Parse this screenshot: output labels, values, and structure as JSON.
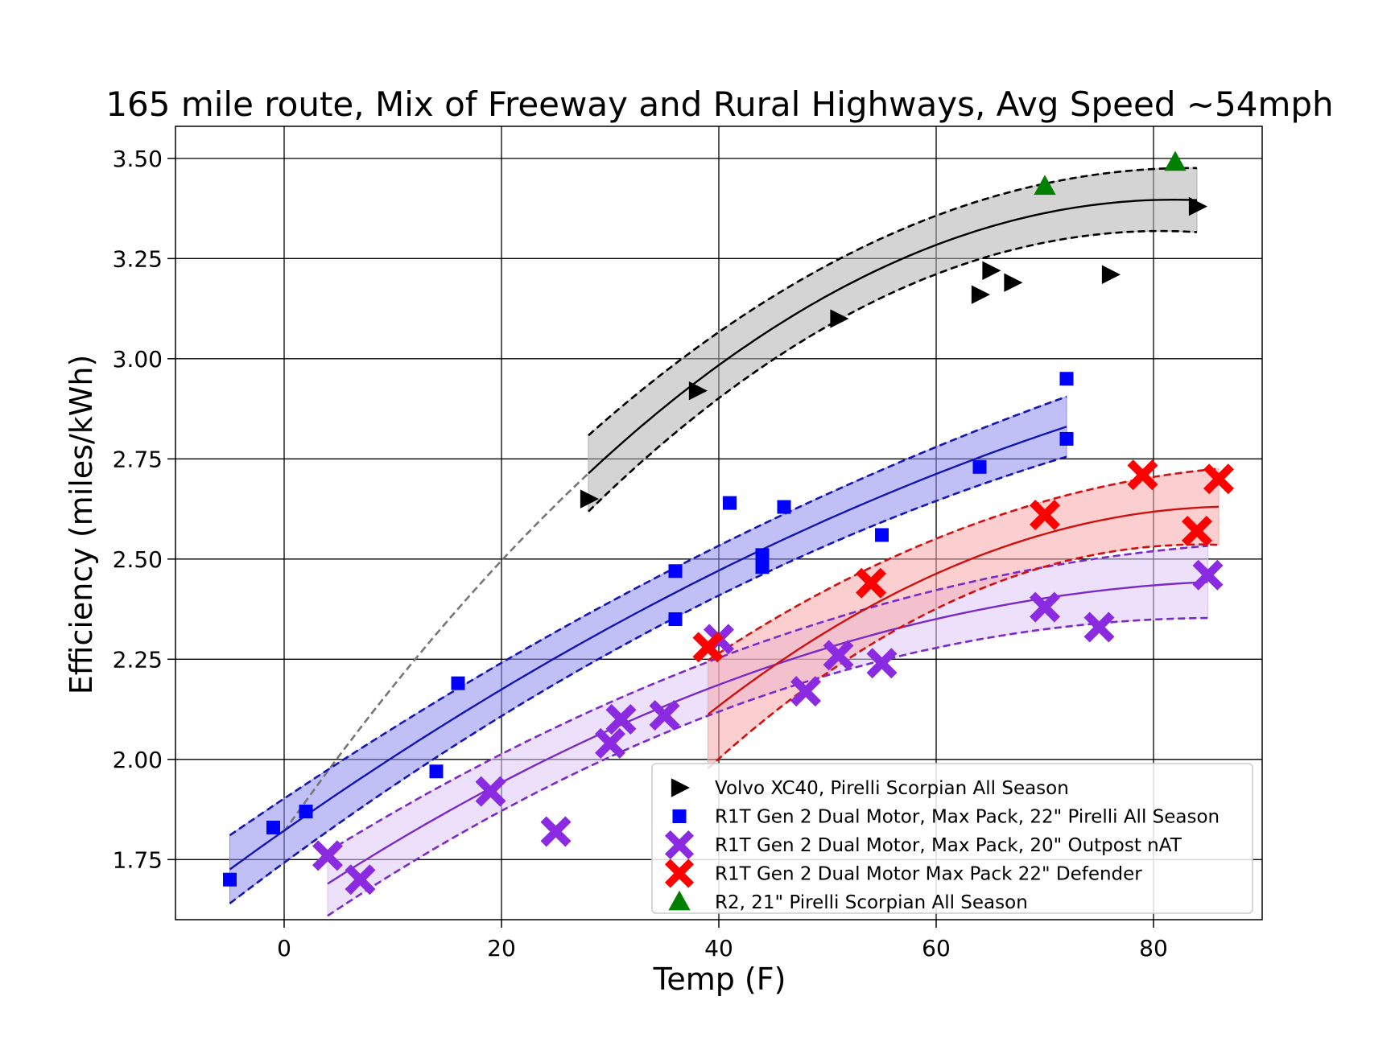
{
  "chart_data": {
    "type": "scatter",
    "title": "165 mile route, Mix of Freeway and Rural Highways, Avg Speed ~54mph",
    "xlabel": "Temp (F)",
    "ylabel": "Efficiency (miles/kWh)",
    "xlim": [
      -10,
      90
    ],
    "ylim": [
      1.6,
      3.58
    ],
    "xticks": [
      0,
      20,
      40,
      60,
      80
    ],
    "yticks": [
      1.75,
      2.0,
      2.25,
      2.5,
      2.75,
      3.0,
      3.25,
      3.5
    ],
    "xtick_labels": [
      "0",
      "20",
      "40",
      "60",
      "80"
    ],
    "ytick_labels": [
      "1.75",
      "2.00",
      "2.25",
      "2.50",
      "2.75",
      "3.00",
      "3.25",
      "3.50"
    ],
    "grid": true,
    "legend_position": "lower-right",
    "series": [
      {
        "name": "Volvo XC40, Pirelli Scorpian All Season",
        "marker": "triangle-right",
        "color": "#000000",
        "band_color": "#b0b0b0",
        "points": [
          [
            28,
            2.65
          ],
          [
            38,
            2.92
          ],
          [
            51,
            3.1
          ],
          [
            64,
            3.16
          ],
          [
            65,
            3.22
          ],
          [
            67,
            3.19
          ],
          [
            76,
            3.21
          ],
          [
            84,
            3.38
          ]
        ],
        "fit": {
          "x_min": 28,
          "x_max": 84,
          "a": 1.82,
          "b": 0.0385,
          "c": -0.000235,
          "band": [
            0.095,
            0.06,
            0.08
          ]
        },
        "extrapolation": {
          "x_min": 0,
          "x_max": 28
        }
      },
      {
        "name": "R1T Gen 2 Dual Motor, Max Pack, 22\" Pirelli All Season",
        "marker": "square",
        "color": "#0000ff",
        "line_color": "#1515b5",
        "band_color": "#8c8cf0",
        "points": [
          [
            -5,
            1.7
          ],
          [
            -1,
            1.83
          ],
          [
            2,
            1.87
          ],
          [
            14,
            1.97
          ],
          [
            16,
            2.19
          ],
          [
            36,
            2.47
          ],
          [
            36,
            2.35
          ],
          [
            41,
            2.64
          ],
          [
            44,
            2.51
          ],
          [
            44,
            2.48
          ],
          [
            46,
            2.63
          ],
          [
            55,
            2.56
          ],
          [
            64,
            2.73
          ],
          [
            72,
            2.95
          ],
          [
            72,
            2.8
          ]
        ],
        "fit": {
          "x_min": -5,
          "x_max": 72,
          "a": 1.8223,
          "b": 0.019,
          "c": -6.94e-05,
          "band": [
            0.085,
            0.045,
            0.075
          ]
        }
      },
      {
        "name": "R1T Gen 2 Dual Motor, Max Pack, 20\" Outpost nAT",
        "marker": "x-filled",
        "color": "#8a2be2",
        "line_color": "#7a2ac8",
        "band_color": "#dcc6f5",
        "points": [
          [
            4,
            1.76
          ],
          [
            7,
            1.7
          ],
          [
            19,
            1.92
          ],
          [
            25,
            1.82
          ],
          [
            30,
            2.04
          ],
          [
            31,
            2.1
          ],
          [
            35,
            2.11
          ],
          [
            40,
            2.3
          ],
          [
            48,
            2.17
          ],
          [
            51,
            2.26
          ],
          [
            55,
            2.24
          ],
          [
            70,
            2.38
          ],
          [
            75,
            2.33
          ],
          [
            85,
            2.46
          ]
        ],
        "fit": {
          "x_min": 4,
          "x_max": 85,
          "a": 1.6184,
          "b": 0.0182,
          "c": -0.0001,
          "band": [
            0.08,
            0.05,
            0.09
          ]
        }
      },
      {
        "name": "R1T Gen 2 Dual Motor Max Pack 22\" Defender",
        "marker": "x-filled",
        "color": "#ff0000",
        "line_color": "#d01010",
        "band_color": "#f7a8a8",
        "points": [
          [
            39,
            2.28
          ],
          [
            54,
            2.44
          ],
          [
            70,
            2.61
          ],
          [
            79,
            2.71
          ],
          [
            84,
            2.57
          ],
          [
            86,
            2.7
          ]
        ],
        "fit": {
          "x_min": 39,
          "x_max": 86,
          "a": 0.9478,
          "b": 0.0384,
          "c": -0.000219,
          "band": [
            0.135,
            0.055,
            0.095
          ]
        }
      },
      {
        "name": "R2, 21\" Pirelli Scorpian All Season",
        "marker": "triangle-up",
        "color": "#008000",
        "points": [
          [
            70,
            3.43
          ],
          [
            82,
            3.49
          ]
        ]
      }
    ]
  }
}
